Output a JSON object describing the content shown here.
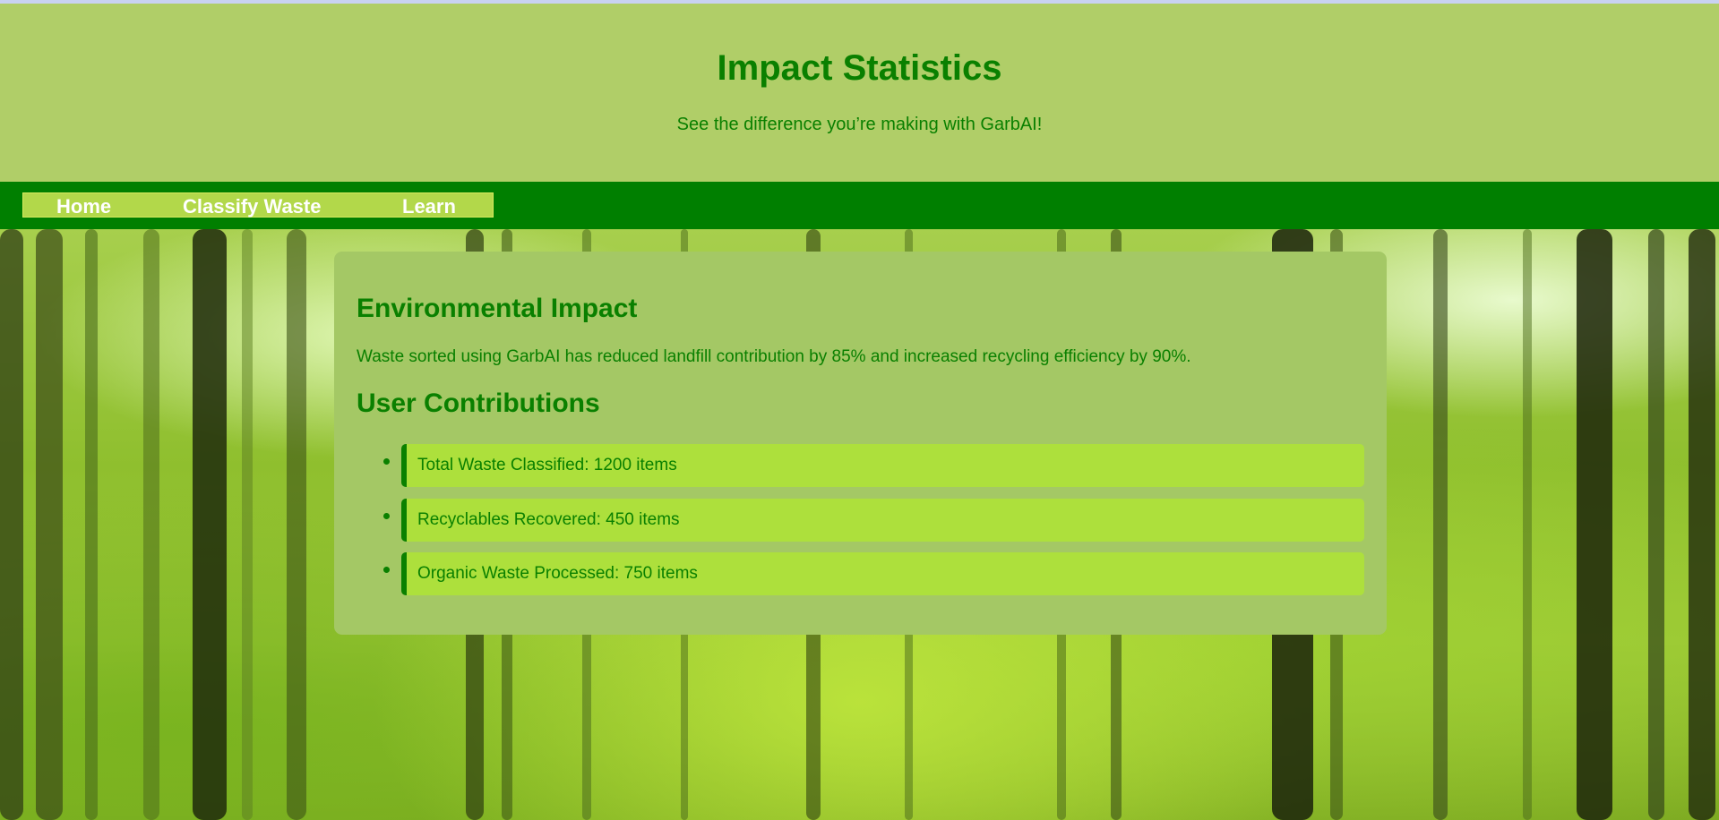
{
  "header": {
    "title": "Impact Statistics",
    "subtitle": "See the difference you’re making with GarbAI!"
  },
  "nav": {
    "items": [
      {
        "label": "Home"
      },
      {
        "label": "Classify Waste"
      },
      {
        "label": "Learn"
      }
    ]
  },
  "main": {
    "impact_heading": "Environmental Impact",
    "impact_text": "Waste sorted using GarbAI has reduced landfill contribution by 85% and increased recycling efficiency by 90%.",
    "contributions_heading": "User Contributions",
    "stats": [
      {
        "label": "Total Waste Classified: 1200 items"
      },
      {
        "label": "Recyclables Recovered: 450 items"
      },
      {
        "label": "Organic Waste Processed: 750 items"
      }
    ]
  },
  "colors": {
    "primary_green": "#0a8000",
    "header_bg": "#b0ce68",
    "nav_bg": "#007f00",
    "card_bg": "#a4c865",
    "stat_bg": "#ade03c"
  },
  "background": {
    "icon": "forest-background-image"
  }
}
